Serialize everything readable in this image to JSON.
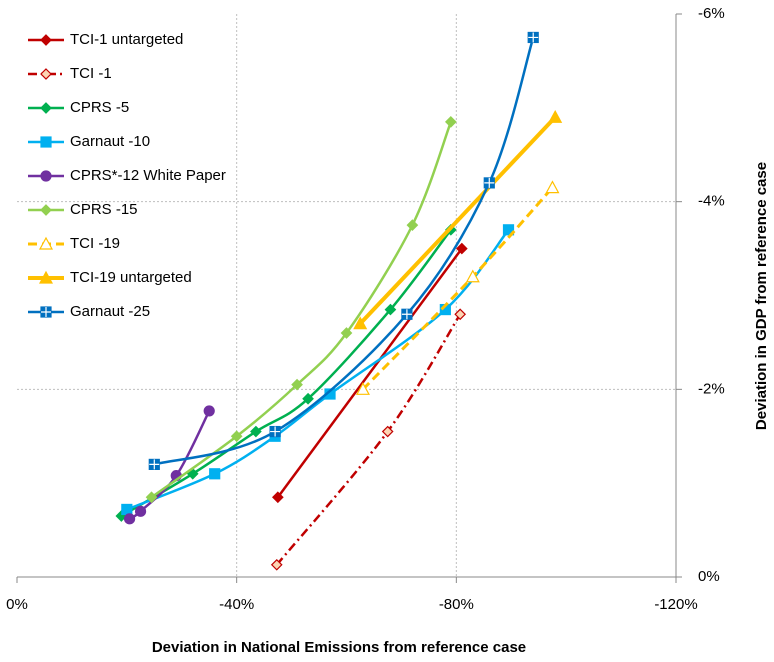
{
  "chart_data": {
    "type": "line",
    "x_label": "Deviation in National Emissions  from reference case",
    "y_label": "Deviation in GDP from reference case",
    "xlim": [
      0,
      -120
    ],
    "ylim": [
      0,
      -6
    ],
    "xticks": [
      {
        "value": 0,
        "label": "0%"
      },
      {
        "value": -40,
        "label": "-40%"
      },
      {
        "value": -80,
        "label": "-80%"
      },
      {
        "value": -120,
        "label": "-120%"
      }
    ],
    "yticks": [
      {
        "value": 0,
        "label": "0%"
      },
      {
        "value": -2,
        "label": "-2%"
      },
      {
        "value": -4,
        "label": "-4%"
      },
      {
        "value": -6,
        "label": "-6%"
      }
    ],
    "grid": true,
    "legend": "top-left",
    "series": [
      {
        "name": "TCI-1 untargeted",
        "color": "#c00000",
        "marker": "diamond",
        "marker_fill": "#c00000",
        "dash": "solid",
        "width": 2.5,
        "x": [
          -47.5,
          -81
        ],
        "values": [
          -0.85,
          -3.5
        ]
      },
      {
        "name": "TCI -1",
        "color": "#c00000",
        "marker": "diamond",
        "marker_fill": "#fcd5b4",
        "dash": "dashdot",
        "width": 2.5,
        "x": [
          -47.3,
          -67.5,
          -80.7
        ],
        "values": [
          -0.13,
          -1.55,
          -2.8
        ]
      },
      {
        "name": "CPRS -5",
        "color": "#00b050",
        "marker": "diamond",
        "marker_fill": "#00b050",
        "dash": "solid",
        "width": 2.5,
        "x": [
          -19,
          -32,
          -43.5,
          -53,
          -68,
          -79
        ],
        "values": [
          -0.65,
          -1.1,
          -1.55,
          -1.9,
          -2.85,
          -3.7
        ]
      },
      {
        "name": "Garnaut -10",
        "color": "#00b0f0",
        "marker": "square",
        "marker_fill": "#00b0f0",
        "dash": "solid",
        "width": 2.5,
        "x": [
          -20,
          -36,
          -47,
          -57,
          -78,
          -89.5
        ],
        "values": [
          -0.72,
          -1.1,
          -1.5,
          -1.95,
          -2.85,
          -3.7
        ]
      },
      {
        "name": "CPRS*-12 White Paper",
        "color": "#7030a0",
        "marker": "circle",
        "marker_fill": "#7030a0",
        "dash": "solid",
        "width": 2.5,
        "x": [
          -20.5,
          -22.5,
          -29,
          -35
        ],
        "values": [
          -0.62,
          -0.7,
          -1.08,
          -1.77
        ]
      },
      {
        "name": "CPRS -15",
        "color": "#92d050",
        "marker": "diamond",
        "marker_fill": "#92d050",
        "dash": "solid",
        "width": 2.5,
        "x": [
          -24.5,
          -40,
          -51,
          -60,
          -72,
          -79
        ],
        "values": [
          -0.85,
          -1.5,
          -2.05,
          -2.6,
          -3.75,
          -4.85
        ]
      },
      {
        "name": "TCI -19",
        "color": "#ffc000",
        "marker": "triangle",
        "marker_fill": "#ffffff",
        "dash": "dash",
        "width": 3,
        "x": [
          -63,
          -83,
          -97.5
        ],
        "values": [
          -2.0,
          -3.2,
          -4.15
        ]
      },
      {
        "name": "TCI-19 untargeted",
        "color": "#ffc000",
        "marker": "triangle",
        "marker_fill": "#ffc000",
        "dash": "solid",
        "width": 4,
        "x": [
          -62.5,
          -98
        ],
        "values": [
          -2.7,
          -4.9
        ]
      },
      {
        "name": "Garnaut -25",
        "color": "#0070c0",
        "marker": "plus-square",
        "marker_fill": "#0070c0",
        "dash": "solid",
        "width": 2.5,
        "x": [
          -25,
          -47,
          -71,
          -86,
          -94
        ],
        "values": [
          -1.2,
          -1.55,
          -2.8,
          -4.2,
          -5.75
        ]
      }
    ]
  }
}
